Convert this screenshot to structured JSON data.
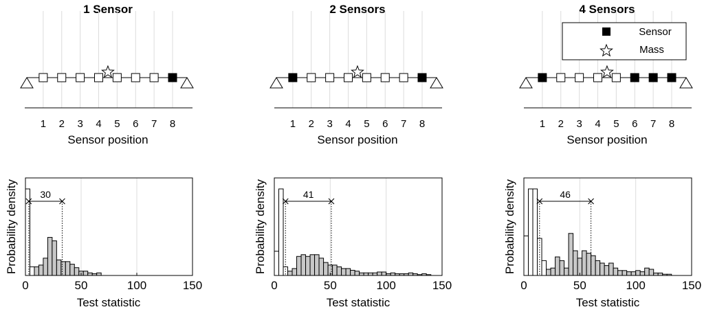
{
  "chart_data": [
    {
      "type": "diagram",
      "panel": "sensor-layout",
      "title": "1 Sensor",
      "xlabel": "Sensor position",
      "positions": [
        1,
        2,
        3,
        4,
        5,
        6,
        7,
        8
      ],
      "sensor_positions": [
        8
      ],
      "mass_position": 4.5
    },
    {
      "type": "diagram",
      "panel": "sensor-layout",
      "title": "2 Sensors",
      "xlabel": "Sensor position",
      "positions": [
        1,
        2,
        3,
        4,
        5,
        6,
        7,
        8
      ],
      "sensor_positions": [
        1,
        8
      ],
      "mass_position": 4.5
    },
    {
      "type": "diagram",
      "panel": "sensor-layout",
      "title": "4 Sensors",
      "xlabel": "Sensor position",
      "positions": [
        1,
        2,
        3,
        4,
        5,
        6,
        7,
        8
      ],
      "sensor_positions": [
        1,
        6,
        7,
        8
      ],
      "mass_position": 4.5,
      "legend": {
        "entries": [
          "Sensor",
          "Mass"
        ],
        "placement": "top-right"
      }
    },
    {
      "type": "histogram",
      "xlabel": "Test statistic",
      "ylabel": "Probability density",
      "xlim": [
        0,
        150
      ],
      "xticks": [
        0,
        50,
        100,
        150
      ],
      "bin_width": 4,
      "grid": "x",
      "unfilled_values": [
        1.0,
        0.1
      ],
      "filled_start": 8,
      "filled_values": [
        0.1,
        0.12,
        0.2,
        0.44,
        0.4,
        0.18,
        0.16,
        0.16,
        0.13,
        0.09,
        0.05,
        0.05,
        0.03,
        0.02,
        0.03
      ],
      "annotation": {
        "label": "30",
        "x_start": 3,
        "x_end": 33
      }
    },
    {
      "type": "histogram",
      "xlabel": "Test statistic",
      "ylabel": "Probability density",
      "xlim": [
        0,
        150
      ],
      "xticks": [
        0,
        50,
        100,
        150
      ],
      "bin_width": 4,
      "grid": "x",
      "unfilled_values": [
        0.28,
        1.0,
        0.1
      ],
      "filled_start": 12,
      "filled_values": [
        0.05,
        0.08,
        0.22,
        0.24,
        0.22,
        0.24,
        0.24,
        0.2,
        0.15,
        0.12,
        0.12,
        0.1,
        0.08,
        0.08,
        0.06,
        0.05,
        0.03,
        0.03,
        0.03,
        0.03,
        0.04,
        0.04,
        0.02,
        0.03,
        0.02,
        0.02,
        0.02,
        0.03,
        0.02,
        0.01,
        0.02,
        0.01
      ],
      "annotation": {
        "label": "41",
        "x_start": 10,
        "x_end": 51
      }
    },
    {
      "type": "histogram",
      "xlabel": "Test statistic",
      "ylabel": "Probability density",
      "xlim": [
        0,
        150
      ],
      "xticks": [
        0,
        50,
        100,
        150
      ],
      "bin_width": 4,
      "grid": "x",
      "unfilled_values": [
        0.32,
        0.7,
        0.7,
        0.3,
        0.12
      ],
      "filled_start": 20,
      "filled_values": [
        0.05,
        0.06,
        0.15,
        0.12,
        0.06,
        0.34,
        0.2,
        0.14,
        0.2,
        0.18,
        0.16,
        0.12,
        0.1,
        0.08,
        0.1,
        0.06,
        0.04,
        0.04,
        0.03,
        0.03,
        0.04,
        0.03,
        0.06,
        0.05,
        0.02,
        0.02,
        0.01,
        0.01
      ],
      "annotation": {
        "label": "46",
        "x_start": 14,
        "x_end": 60
      }
    }
  ],
  "colors": {
    "sensor": "#000000",
    "empty_bar": "#ffffff",
    "filled_bar": "#c8c8c8",
    "grid": "#dcdcdc"
  }
}
